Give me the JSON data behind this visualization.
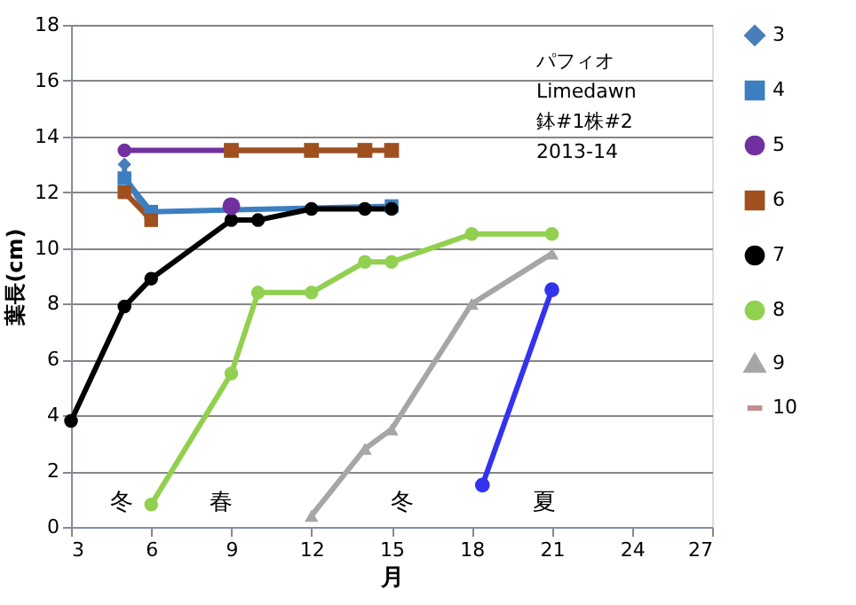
{
  "chart_data": {
    "type": "line",
    "xlabel": "月",
    "ylabel": "葉長(cm)",
    "xlim": [
      3,
      27
    ],
    "xticks": [
      3,
      6,
      9,
      12,
      15,
      18,
      21,
      24,
      27
    ],
    "ylim": [
      0,
      18
    ],
    "yticks": [
      0,
      2,
      4,
      6,
      8,
      10,
      12,
      14,
      16,
      18
    ],
    "grid": "y",
    "legend": "right",
    "series": [
      {
        "name": "3",
        "color": "#4a7ebb",
        "marker": "diamond",
        "x": [
          5,
          5,
          6
        ],
        "values": [
          13,
          12.6,
          11
        ]
      },
      {
        "name": "4",
        "color": "#3c7fc0",
        "marker": "square",
        "x": [
          5,
          6,
          15
        ],
        "values": [
          12.5,
          11.3,
          11.5
        ]
      },
      {
        "name": "5",
        "color": "#7030a0",
        "marker": "circle",
        "x": [
          5,
          14
        ],
        "values": [
          13.5,
          13.5
        ]
      },
      {
        "name": "6",
        "color": "#a0501e",
        "marker": "square",
        "x": [
          5,
          6
        ],
        "values": [
          12,
          11
        ]
      },
      {
        "name": "7",
        "color": "#000000",
        "marker": "circle",
        "x": [
          3,
          5,
          6,
          9,
          10,
          12,
          14,
          15
        ],
        "values": [
          3.8,
          7.9,
          8.9,
          11,
          11,
          11.4,
          11.4,
          11.4
        ]
      },
      {
        "name": "8",
        "color": "#92d050",
        "marker": "circle",
        "x": [
          6,
          9,
          10,
          12,
          14,
          15,
          18,
          21
        ],
        "values": [
          0.8,
          5.5,
          8.4,
          8.4,
          9.5,
          9.5,
          10.5,
          10.5
        ]
      },
      {
        "name": "9",
        "color": "#a6a6a6",
        "marker": "triangle",
        "x": [
          12,
          14,
          15,
          18,
          21
        ],
        "values": [
          0.4,
          2.8,
          3.5,
          8,
          9.8
        ]
      },
      {
        "name": "10",
        "color": "#c0908f",
        "marker": "none"
      },
      {
        "type": "scatter",
        "color": "#7030a0",
        "marker": "circle",
        "x": [
          9
        ],
        "values": [
          11.5
        ]
      },
      {
        "color": "#a0501e",
        "marker": "square",
        "x": [
          9,
          12,
          14,
          15
        ],
        "values": [
          13.5,
          13.5,
          13.5,
          13.5
        ]
      },
      {
        "color": "#3333ee",
        "marker": "circle",
        "x": [
          18.4,
          21
        ],
        "values": [
          1.5,
          8.5
        ]
      }
    ],
    "annotations": [
      "パフィオ",
      "Limedawn",
      "鉢#1株#2",
      "2013-14",
      "冬",
      "春",
      "冬",
      "夏"
    ]
  }
}
